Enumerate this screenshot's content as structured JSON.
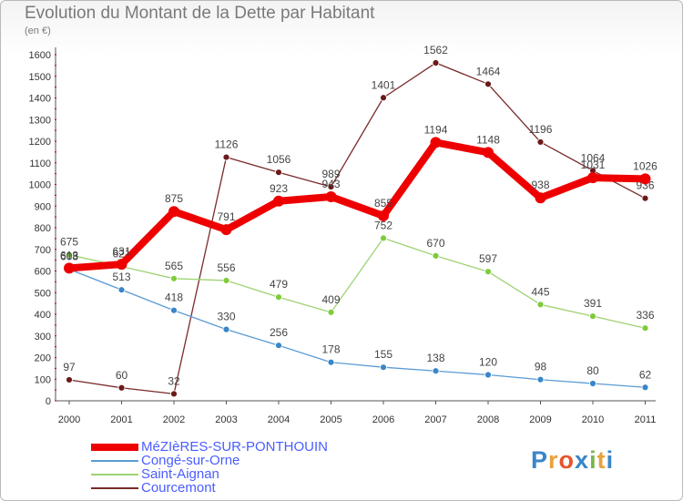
{
  "title": "Evolution du Montant de la Dette par Habitant",
  "subtitle": "(en €)",
  "logo": {
    "text": "Proxiti",
    "colors": [
      "#3a86c8",
      "#e8a23a",
      "#e8552c",
      "#3a86c8",
      "#7ab648",
      "#e8a23a",
      "#3a86c8"
    ]
  },
  "chart_data": {
    "type": "line",
    "title": "Evolution du Montant de la Dette par Habitant",
    "ylabel": "(en €)",
    "x": [
      "2000",
      "2001",
      "2002",
      "2003",
      "2004",
      "2005",
      "2006",
      "2007",
      "2008",
      "2009",
      "2010",
      "2011"
    ],
    "ylim": [
      0,
      1600
    ],
    "yticks": [
      0,
      100,
      200,
      300,
      400,
      500,
      600,
      700,
      800,
      900,
      1000,
      1100,
      1200,
      1300,
      1400,
      1500,
      1600
    ],
    "grid": false,
    "legend_position": "bottom-left",
    "series": [
      {
        "name": "MéZIèRES-SUR-PONTHOUIN",
        "color": "#ee0000",
        "marker": "#ee0000",
        "width": 8,
        "values": [
          613,
          631,
          875,
          791,
          923,
          943,
          855,
          1194,
          1148,
          938,
          1031,
          1026
        ]
      },
      {
        "name": "Congé-sur-Orne",
        "color": "#5b9bd5",
        "marker": "#3a86c8",
        "width": 1.3,
        "values": [
          608,
          513,
          418,
          330,
          256,
          178,
          155,
          138,
          120,
          98,
          80,
          62
        ]
      },
      {
        "name": "Saint-Aignan",
        "color": "#9fd373",
        "marker": "#7fcc3a",
        "width": 1.3,
        "values": [
          675,
          621,
          565,
          556,
          479,
          409,
          752,
          670,
          597,
          445,
          391,
          336
        ]
      },
      {
        "name": "Courcemont",
        "color": "#7a2a2a",
        "marker": "#6b1a1a",
        "width": 1.3,
        "values": [
          97,
          60,
          32,
          1126,
          1056,
          989,
          1401,
          1562,
          1464,
          1196,
          1064,
          936
        ]
      }
    ]
  }
}
